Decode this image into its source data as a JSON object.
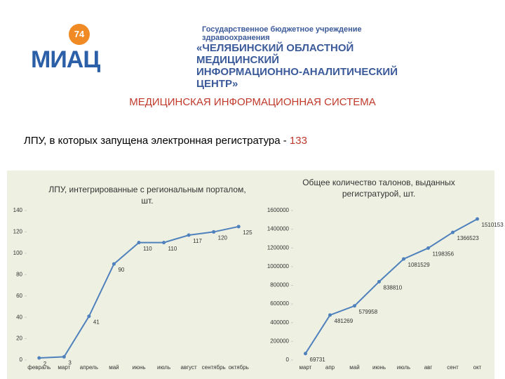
{
  "header": {
    "logo": {
      "text": "МИАЦ",
      "number": "74"
    },
    "org": [
      "Государственное бюджетное учреждение здравоохранения",
      "«ЧЕЛЯБИНСКИЙ ОБЛАСТНОЙ МЕДИЦИНСКИЙ",
      "ИНФОРМАЦИОННО-АНАЛИТИЧЕСКИЙ ЦЕНТР»"
    ]
  },
  "title": "МЕДИЦИНСКАЯ ИНФОРМАЦИОННАЯ СИСТЕМА",
  "subtitle": {
    "text": "ЛПУ, в которых запущена электронная регистратура - ",
    "count": "133"
  },
  "chart_data": [
    {
      "type": "line",
      "title": "ЛПУ, интегрированные с региональным порталом, шт.",
      "categories": [
        "февраль",
        "март",
        "апрель",
        "май",
        "июнь",
        "июль",
        "август",
        "сентябрь",
        "октябрь"
      ],
      "series": [
        {
          "name": "ЛПУ",
          "color": "#4f81bd",
          "values": [
            2,
            3,
            41,
            90,
            110,
            110,
            117,
            120,
            125
          ]
        }
      ],
      "ylim": [
        0,
        140
      ],
      "yticks": [
        0,
        20,
        40,
        60,
        80,
        100,
        120,
        140
      ]
    },
    {
      "type": "line",
      "title": "Общее количество талонов, выданных регистратурой, шт.",
      "categories": [
        "март",
        "апр",
        "май",
        "июнь",
        "июль",
        "авг",
        "сент",
        "окт"
      ],
      "series": [
        {
          "name": "Талоны",
          "color": "#4f81bd",
          "values": [
            69731,
            481269,
            579958,
            838810,
            1081529,
            1198356,
            1366523,
            1510153
          ]
        }
      ],
      "ylim": [
        0,
        1600000
      ],
      "yticks": [
        0,
        200000,
        400000,
        600000,
        800000,
        1000000,
        1200000,
        1400000,
        1600000
      ]
    }
  ]
}
